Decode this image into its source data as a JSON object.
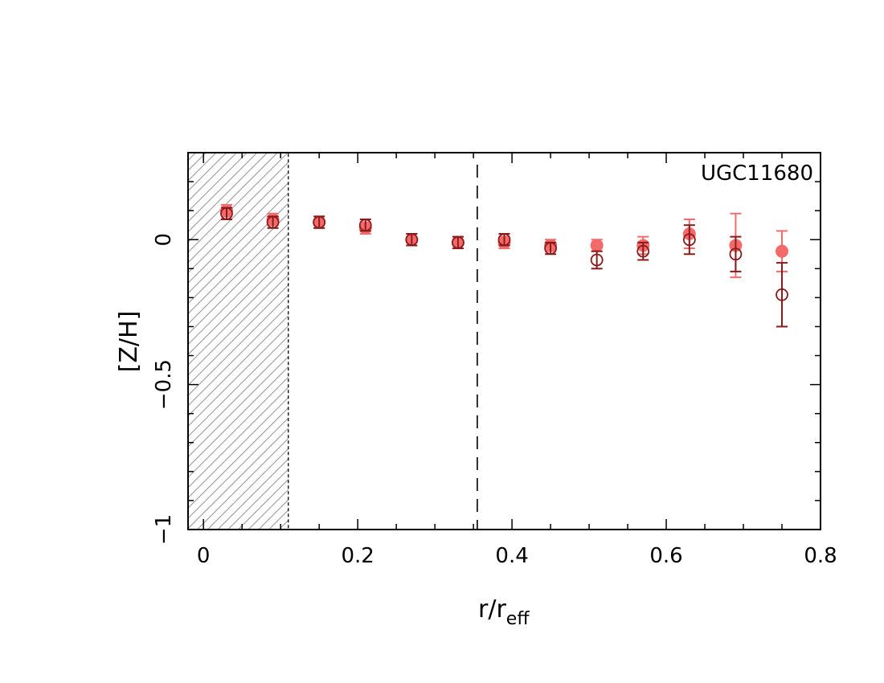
{
  "chart_data": {
    "type": "scatter",
    "annotation": "UGC11680",
    "xlabel": "r/r",
    "xlabel_sub": "eff",
    "ylabel": "[Z/H]",
    "xlim": [
      -0.02,
      0.8
    ],
    "ylim": [
      -1.0,
      0.3
    ],
    "x_ticks": [
      0,
      0.2,
      0.4,
      0.6,
      0.8
    ],
    "x_tick_labels": [
      "0",
      "0.2",
      "0.4",
      "0.6",
      "0.8"
    ],
    "y_ticks": [
      0,
      -0.5,
      -1
    ],
    "y_tick_labels": [
      "0",
      "−0.5",
      "−1"
    ],
    "shaded_region": {
      "x_from": -0.02,
      "x_to": 0.11,
      "pattern": "hatched"
    },
    "vertical_dashed_line_x": 0.355,
    "series": [
      {
        "marker": "filled-circle",
        "color": "#f46a6a",
        "x": [
          0.03,
          0.09,
          0.15,
          0.21,
          0.27,
          0.33,
          0.39,
          0.45,
          0.51,
          0.57,
          0.63,
          0.69,
          0.75
        ],
        "y": [
          0.1,
          0.07,
          0.06,
          0.04,
          0.0,
          -0.01,
          -0.01,
          -0.02,
          -0.02,
          -0.02,
          0.02,
          -0.02,
          -0.04
        ],
        "err": [
          0.02,
          0.02,
          0.02,
          0.02,
          0.02,
          0.02,
          0.02,
          0.02,
          0.02,
          0.03,
          0.05,
          0.11,
          0.07
        ]
      },
      {
        "marker": "open-circle",
        "color": "#8b1a1a",
        "x": [
          0.03,
          0.09,
          0.15,
          0.21,
          0.27,
          0.33,
          0.39,
          0.45,
          0.51,
          0.57,
          0.63,
          0.69,
          0.75
        ],
        "y": [
          0.09,
          0.06,
          0.06,
          0.05,
          0.0,
          -0.01,
          0.0,
          -0.03,
          -0.07,
          -0.04,
          0.0,
          -0.05,
          -0.19
        ],
        "err": [
          0.02,
          0.02,
          0.02,
          0.02,
          0.02,
          0.02,
          0.02,
          0.02,
          0.03,
          0.03,
          0.05,
          0.06,
          0.11
        ]
      }
    ]
  }
}
